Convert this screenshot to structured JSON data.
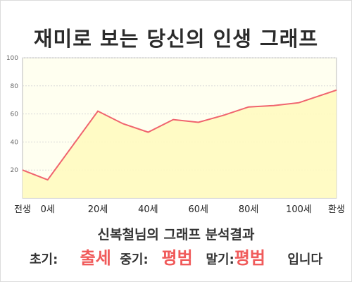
{
  "title": "재미로 보는 당신의 인생 그래프",
  "chart_data": {
    "type": "area",
    "x_labels": [
      "전생",
      "0세",
      "20세",
      "40세",
      "60세",
      "80세",
      "100세",
      "환생"
    ],
    "x": [
      -10,
      0,
      20,
      30,
      40,
      50,
      60,
      70,
      80,
      90,
      100,
      115
    ],
    "y": [
      20,
      13,
      62,
      53,
      47,
      56,
      54,
      59,
      65,
      66,
      68,
      77
    ],
    "ylim": [
      0,
      100
    ],
    "yticks": [
      20,
      40,
      60,
      80,
      100
    ],
    "xlim": [
      -10,
      115
    ],
    "grid": true,
    "colors": {
      "line": "#f0646e",
      "fill": "#fffbc0",
      "plot_bg": "#fffff0",
      "grid": "#d8d8d8"
    }
  },
  "result": {
    "title": "신복철님의 그래프 분석결과",
    "early_label": "초기:",
    "early_value": "출세",
    "mid_label": "중기:",
    "mid_value": "평범",
    "late_label": "말기:",
    "late_value": "평범",
    "suffix": "입니다"
  }
}
